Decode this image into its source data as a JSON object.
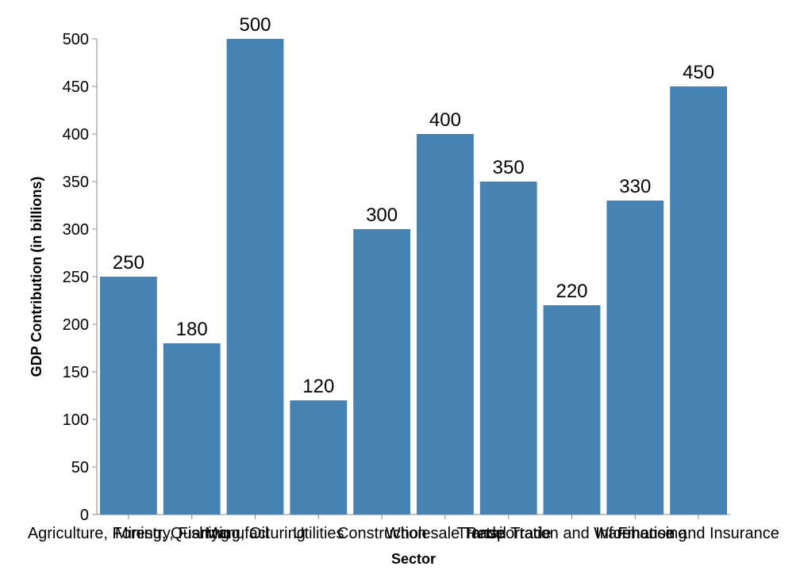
{
  "chart_data": {
    "type": "bar",
    "title": "",
    "xlabel": "Sector",
    "ylabel": "GDP Contribution (in billions)",
    "ylim": [
      0,
      500
    ],
    "yticks": [
      0,
      50,
      100,
      150,
      200,
      250,
      300,
      350,
      400,
      450,
      500
    ],
    "grid": false,
    "bar_color": "#4682b4",
    "categories": [
      "Agriculture, Forestry, Fishing",
      "Mining, Quarrying, Oil",
      "Manufacturing",
      "Utilities",
      "Construction",
      "Wholesale Trade",
      "Retail Trade",
      "Transportation and Warehousing",
      "Information",
      "Finance and Insurance"
    ],
    "values": [
      250,
      180,
      500,
      120,
      300,
      400,
      350,
      220,
      330,
      450
    ]
  }
}
